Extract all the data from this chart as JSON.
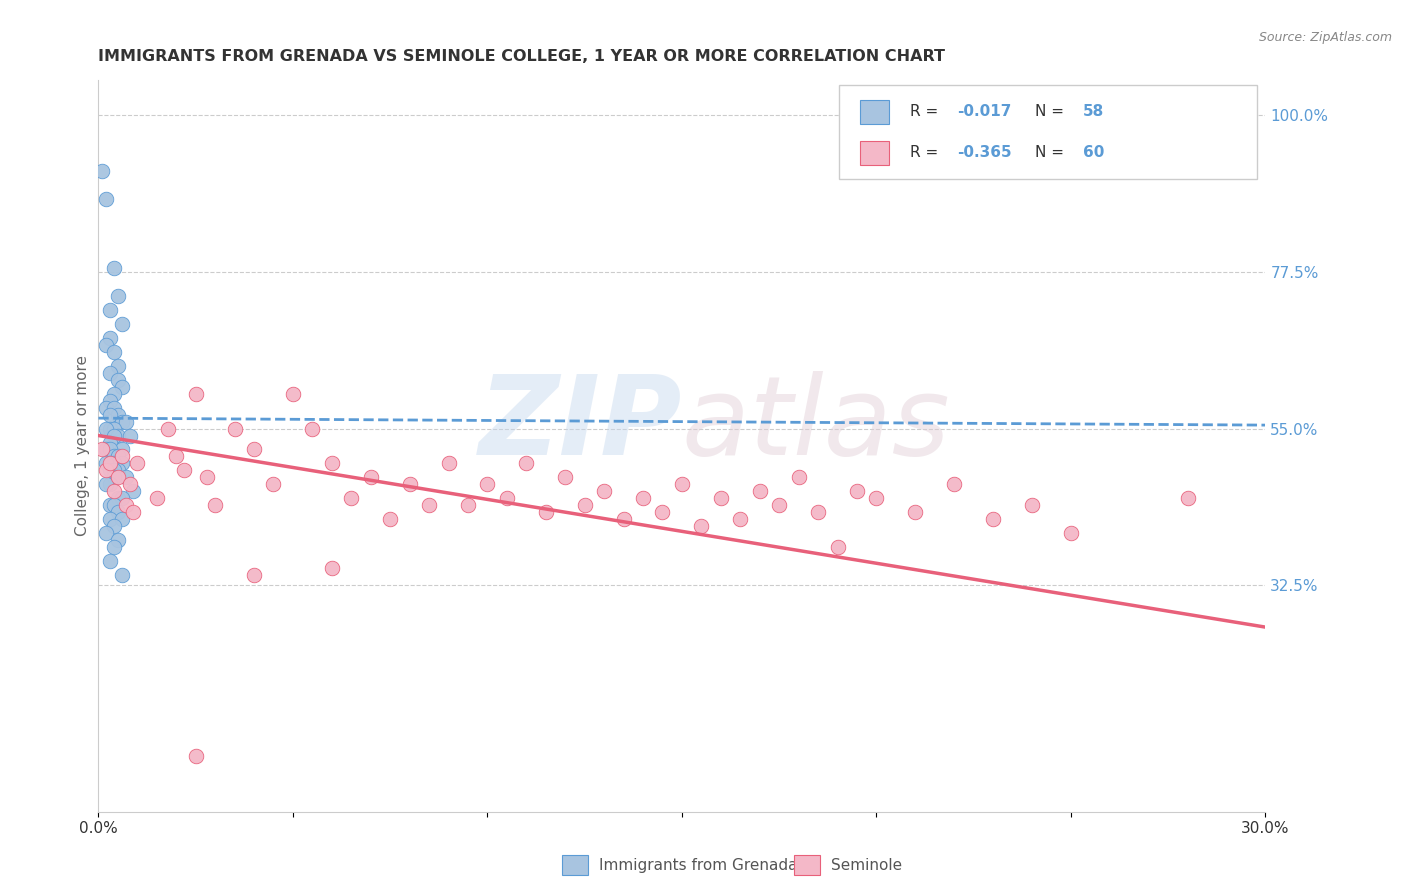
{
  "title": "IMMIGRANTS FROM GRENADA VS SEMINOLE COLLEGE, 1 YEAR OR MORE CORRELATION CHART",
  "source": "Source: ZipAtlas.com",
  "ylabel": "College, 1 year or more",
  "xlim": [
    0.0,
    0.3
  ],
  "ylim": [
    0.0,
    1.05
  ],
  "xticks": [
    0.0,
    0.05,
    0.1,
    0.15,
    0.2,
    0.25,
    0.3
  ],
  "xticklabels": [
    "0.0%",
    "",
    "",
    "",
    "",
    "",
    "30.0%"
  ],
  "yticks_right": [
    0.325,
    0.55,
    0.775,
    1.0
  ],
  "yticklabels_right": [
    "32.5%",
    "55.0%",
    "77.5%",
    "100.0%"
  ],
  "legend_label1": "Immigrants from Grenada",
  "legend_label2": "Seminole",
  "color_blue": "#a8c4e0",
  "color_pink": "#f4b8c8",
  "line_color_blue": "#5b9bd5",
  "line_color_pink": "#e8607a",
  "blue_scatter_x": [
    0.001,
    0.002,
    0.004,
    0.005,
    0.003,
    0.006,
    0.003,
    0.002,
    0.004,
    0.005,
    0.003,
    0.005,
    0.006,
    0.004,
    0.003,
    0.002,
    0.004,
    0.005,
    0.003,
    0.006,
    0.007,
    0.003,
    0.004,
    0.002,
    0.005,
    0.004,
    0.008,
    0.003,
    0.002,
    0.006,
    0.003,
    0.004,
    0.005,
    0.006,
    0.003,
    0.004,
    0.002,
    0.005,
    0.003,
    0.004,
    0.007,
    0.004,
    0.003,
    0.002,
    0.009,
    0.005,
    0.006,
    0.003,
    0.004,
    0.005,
    0.003,
    0.006,
    0.004,
    0.002,
    0.005,
    0.004,
    0.003,
    0.006
  ],
  "blue_scatter_y": [
    0.92,
    0.88,
    0.78,
    0.74,
    0.72,
    0.7,
    0.68,
    0.67,
    0.66,
    0.64,
    0.63,
    0.62,
    0.61,
    0.6,
    0.59,
    0.58,
    0.58,
    0.57,
    0.57,
    0.56,
    0.56,
    0.55,
    0.55,
    0.55,
    0.54,
    0.54,
    0.54,
    0.53,
    0.52,
    0.52,
    0.52,
    0.51,
    0.51,
    0.5,
    0.5,
    0.5,
    0.5,
    0.49,
    0.49,
    0.49,
    0.48,
    0.48,
    0.47,
    0.47,
    0.46,
    0.45,
    0.45,
    0.44,
    0.44,
    0.43,
    0.42,
    0.42,
    0.41,
    0.4,
    0.39,
    0.38,
    0.36,
    0.34
  ],
  "pink_scatter_x": [
    0.001,
    0.002,
    0.003,
    0.004,
    0.005,
    0.006,
    0.007,
    0.008,
    0.009,
    0.01,
    0.015,
    0.018,
    0.02,
    0.022,
    0.025,
    0.028,
    0.03,
    0.035,
    0.04,
    0.045,
    0.05,
    0.055,
    0.06,
    0.065,
    0.07,
    0.075,
    0.08,
    0.085,
    0.09,
    0.095,
    0.1,
    0.105,
    0.11,
    0.115,
    0.12,
    0.125,
    0.13,
    0.135,
    0.14,
    0.145,
    0.15,
    0.155,
    0.16,
    0.165,
    0.17,
    0.175,
    0.18,
    0.185,
    0.19,
    0.195,
    0.2,
    0.21,
    0.22,
    0.23,
    0.24,
    0.25,
    0.025,
    0.04,
    0.06,
    0.28
  ],
  "pink_scatter_y": [
    0.52,
    0.49,
    0.5,
    0.46,
    0.48,
    0.51,
    0.44,
    0.47,
    0.43,
    0.5,
    0.45,
    0.55,
    0.51,
    0.49,
    0.6,
    0.48,
    0.44,
    0.55,
    0.52,
    0.47,
    0.6,
    0.55,
    0.5,
    0.45,
    0.48,
    0.42,
    0.47,
    0.44,
    0.5,
    0.44,
    0.47,
    0.45,
    0.5,
    0.43,
    0.48,
    0.44,
    0.46,
    0.42,
    0.45,
    0.43,
    0.47,
    0.41,
    0.45,
    0.42,
    0.46,
    0.44,
    0.48,
    0.43,
    0.38,
    0.46,
    0.45,
    0.43,
    0.47,
    0.42,
    0.44,
    0.4,
    0.08,
    0.34,
    0.35,
    0.45
  ],
  "blue_trend_x": [
    0.0,
    0.3
  ],
  "blue_trend_y": [
    0.565,
    0.555
  ],
  "pink_trend_x": [
    0.0,
    0.3
  ],
  "pink_trend_y": [
    0.54,
    0.265
  ],
  "grid_color": "#cccccc",
  "background_color": "#ffffff",
  "text_color_dark": "#333333",
  "text_color_blue": "#5b9bd5",
  "text_color_grey": "#888888"
}
